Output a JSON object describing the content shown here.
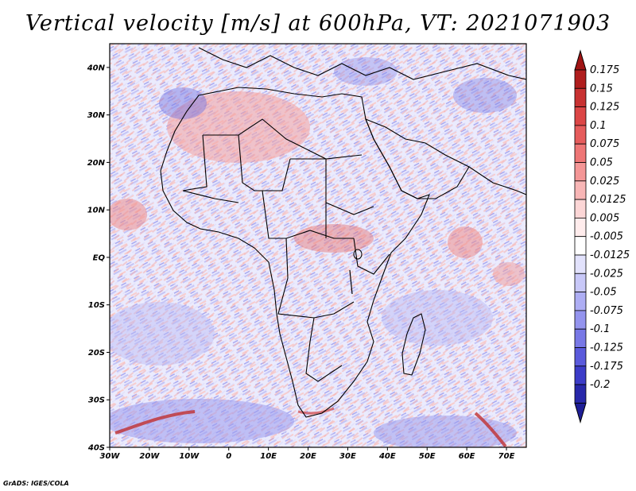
{
  "title": "Vertical velocity [m/s] at 600hPa, VT: 2021071903",
  "credit": "GrADS: IGES/COLA",
  "map": {
    "lon_range": [
      -30,
      75
    ],
    "lat_range": [
      -40,
      45
    ],
    "lon_ticks": [
      {
        "value": -30,
        "label": "30W"
      },
      {
        "value": -20,
        "label": "20W"
      },
      {
        "value": -10,
        "label": "10W"
      },
      {
        "value": 0,
        "label": "0"
      },
      {
        "value": 10,
        "label": "10E"
      },
      {
        "value": 20,
        "label": "20E"
      },
      {
        "value": 30,
        "label": "30E"
      },
      {
        "value": 40,
        "label": "40E"
      },
      {
        "value": 50,
        "label": "50E"
      },
      {
        "value": 60,
        "label": "60E"
      },
      {
        "value": 70,
        "label": "70E"
      }
    ],
    "lat_ticks": [
      {
        "value": 40,
        "label": "40N"
      },
      {
        "value": 30,
        "label": "30N"
      },
      {
        "value": 20,
        "label": "20N"
      },
      {
        "value": 10,
        "label": "10N"
      },
      {
        "value": 0,
        "label": "EQ"
      },
      {
        "value": -10,
        "label": "10S"
      },
      {
        "value": -20,
        "label": "20S"
      },
      {
        "value": -30,
        "label": "30S"
      },
      {
        "value": -40,
        "label": "40S"
      }
    ]
  },
  "colorbar": {
    "levels": [
      {
        "label": "0.175",
        "color": "#b01e1e"
      },
      {
        "label": "0.15",
        "color": "#c83232"
      },
      {
        "label": "0.125",
        "color": "#dc4646"
      },
      {
        "label": "0.1",
        "color": "#e65c5c"
      },
      {
        "label": "0.075",
        "color": "#ee7676"
      },
      {
        "label": "0.05",
        "color": "#f49696"
      },
      {
        "label": "0.025",
        "color": "#f8b6b6"
      },
      {
        "label": "0.0125",
        "color": "#fcd6d6"
      },
      {
        "label": "0.005",
        "color": "#ffecec"
      },
      {
        "label": "-0.005",
        "color": "#ffffff"
      },
      {
        "label": "-0.0125",
        "color": "#e2e2fc"
      },
      {
        "label": "-0.025",
        "color": "#c8c8f8"
      },
      {
        "label": "-0.05",
        "color": "#aeaef4"
      },
      {
        "label": "-0.075",
        "color": "#9494ee"
      },
      {
        "label": "-0.1",
        "color": "#7878e6"
      },
      {
        "label": "-0.125",
        "color": "#5a5adc"
      },
      {
        "label": "-0.175",
        "color": "#3c3cc8"
      },
      {
        "label": "-0.2",
        "color": "#2828aa"
      }
    ],
    "top_color": "#a01414",
    "bottom_color": "#1e1e96"
  }
}
